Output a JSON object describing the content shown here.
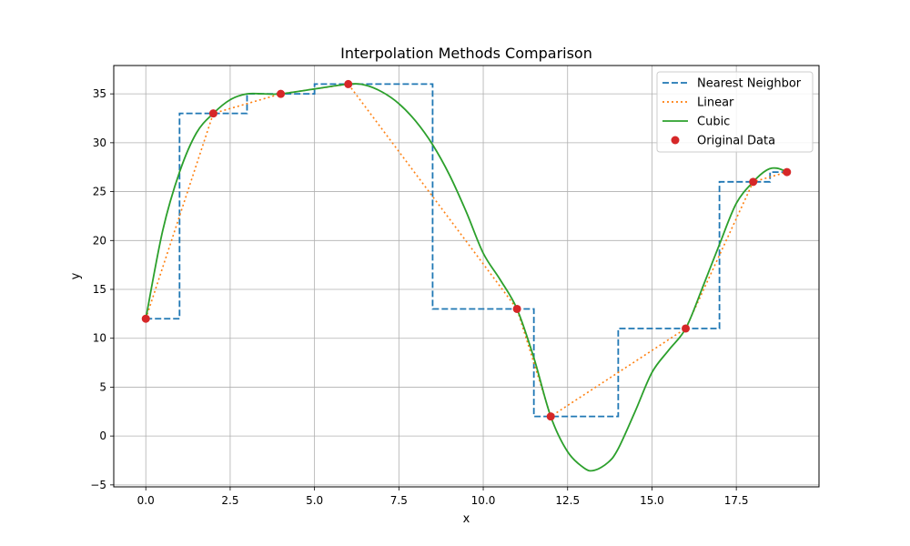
{
  "chart_data": {
    "type": "line",
    "title": "Interpolation Methods Comparison",
    "xlabel": "x",
    "ylabel": "y",
    "xlim": [
      -0.95,
      19.95
    ],
    "ylim": [
      -5.2,
      37.9
    ],
    "xticks": [
      0.0,
      2.5,
      5.0,
      7.5,
      10.0,
      12.5,
      15.0,
      17.5
    ],
    "xtick_labels": [
      "0.0",
      "2.5",
      "5.0",
      "7.5",
      "10.0",
      "12.5",
      "15.0",
      "17.5"
    ],
    "yticks": [
      -5,
      0,
      5,
      10,
      15,
      20,
      25,
      30,
      35
    ],
    "ytick_labels": [
      "−5",
      "0",
      "5",
      "10",
      "15",
      "20",
      "25",
      "30",
      "35"
    ],
    "grid": true,
    "legend_position": "top-right",
    "series": [
      {
        "name": "Nearest Neighbor",
        "style": "dashed",
        "color": "#1f77b4",
        "x": [
          0,
          1,
          1,
          3,
          3,
          5,
          5,
          8.5,
          8.5,
          11.5,
          11.5,
          14,
          14,
          17,
          17,
          18.5,
          18.5,
          19
        ],
        "y": [
          12,
          12,
          33,
          33,
          35,
          35,
          36,
          36,
          13,
          13,
          2,
          2,
          11,
          11,
          26,
          26,
          27,
          27
        ]
      },
      {
        "name": "Linear",
        "style": "dotted",
        "color": "#ff7f0e",
        "x": [
          0,
          2,
          4,
          6,
          11,
          12,
          16,
          18,
          19
        ],
        "y": [
          12,
          33,
          35,
          36,
          13,
          2,
          11,
          26,
          27
        ]
      },
      {
        "name": "Cubic",
        "style": "solid",
        "color": "#2ca02c",
        "x": [
          0,
          0.5,
          1,
          1.5,
          2,
          2.5,
          3,
          3.5,
          4,
          5,
          6,
          6.5,
          7,
          7.5,
          8,
          8.5,
          9,
          9.5,
          10,
          10.5,
          11,
          11.5,
          12,
          12.5,
          13,
          13.3,
          13.7,
          14,
          14.5,
          15,
          15.5,
          16,
          16.5,
          17,
          17.5,
          18,
          18.4,
          18.7,
          19
        ],
        "y": [
          12,
          21,
          27,
          31,
          33,
          34.4,
          35,
          35,
          35,
          35.5,
          36,
          35.9,
          35.2,
          34,
          32.2,
          29.8,
          26.7,
          22.9,
          18.7,
          16,
          13,
          8,
          2,
          -1.6,
          -3.3,
          -3.5,
          -2.7,
          -1.3,
          2.5,
          6.5,
          8.8,
          11,
          15.2,
          19.6,
          23.8,
          26,
          27.2,
          27.4,
          27
        ]
      },
      {
        "name": "Original Data",
        "style": "markers",
        "color": "#d62728",
        "x": [
          0,
          2,
          4,
          6,
          11,
          12,
          16,
          18,
          19
        ],
        "y": [
          12,
          33,
          35,
          36,
          13,
          2,
          11,
          26,
          27
        ]
      }
    ]
  }
}
